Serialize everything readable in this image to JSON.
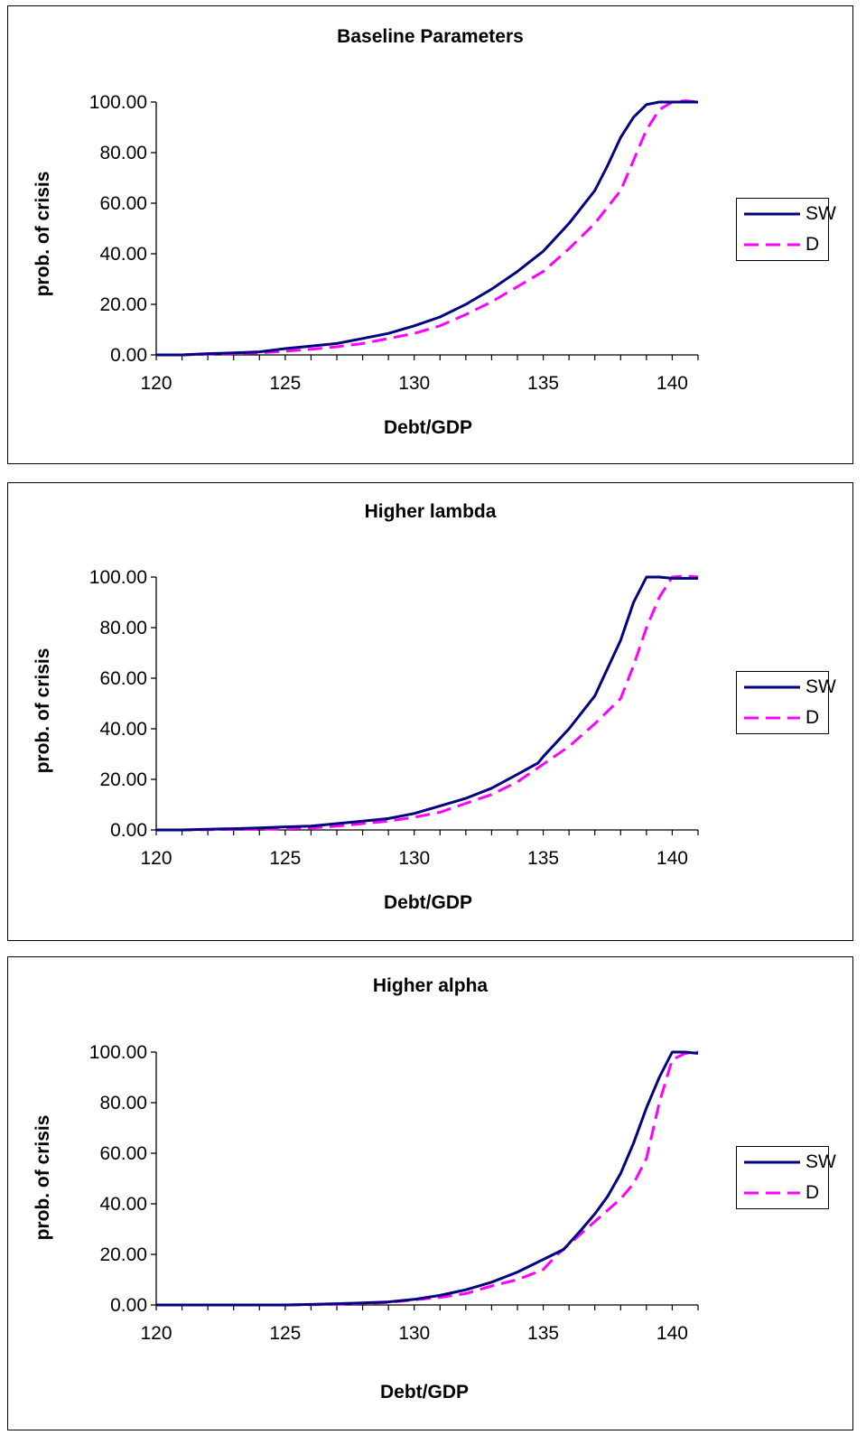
{
  "chart_data": [
    {
      "type": "line",
      "title": "Baseline Parameters",
      "xlabel": "Debt/GDP",
      "ylabel": "prob. of crisis",
      "xlim": [
        120,
        141
      ],
      "ylim": [
        0,
        100
      ],
      "xticks": [
        120,
        125,
        130,
        135,
        140
      ],
      "xtick_labels": [
        "120",
        "125",
        "130",
        "135",
        "140"
      ],
      "yticks": [
        0,
        20,
        40,
        60,
        80,
        100
      ],
      "ytick_labels": [
        "0.00",
        "20.00",
        "40.00",
        "60.00",
        "80.00",
        "100.00"
      ],
      "legend_position": "right",
      "series": [
        {
          "name": "SW",
          "color": "#000080",
          "dash": "solid",
          "x": [
            120,
            121,
            122,
            123,
            124,
            125,
            126,
            127,
            128,
            129,
            130,
            131,
            132,
            133,
            134,
            135,
            136,
            137,
            137.5,
            138,
            138.5,
            139,
            139.5,
            140,
            141
          ],
          "y": [
            0,
            0,
            0.5,
            0.8,
            1.2,
            2.5,
            3.5,
            4.5,
            6.5,
            8.5,
            11.5,
            15,
            20,
            26,
            33,
            41,
            52,
            65,
            75,
            86,
            94,
            99,
            100,
            100,
            100
          ]
        },
        {
          "name": "D",
          "color": "#ff00ff",
          "dash": "dashed",
          "x": [
            120,
            121,
            122,
            123,
            124,
            125,
            126,
            127,
            128,
            129,
            130,
            131,
            132,
            133,
            134,
            135,
            136,
            137,
            138,
            138.5,
            139,
            139.5,
            140,
            140.5,
            141
          ],
          "y": [
            0,
            0,
            0.3,
            0.5,
            0.8,
            1.5,
            2.2,
            3.2,
            4.5,
            6.5,
            8.5,
            11.5,
            16,
            21,
            27,
            33,
            42,
            52,
            65,
            77,
            89,
            97,
            100,
            100.5,
            100
          ]
        }
      ]
    },
    {
      "type": "line",
      "title": "Higher lambda",
      "xlabel": "Debt/GDP",
      "ylabel": "prob. of crisis",
      "xlim": [
        120,
        141
      ],
      "ylim": [
        0,
        100
      ],
      "xticks": [
        120,
        125,
        130,
        135,
        140
      ],
      "xtick_labels": [
        "120",
        "125",
        "130",
        "135",
        "140"
      ],
      "yticks": [
        0,
        20,
        40,
        60,
        80,
        100
      ],
      "ytick_labels": [
        "0.00",
        "20.00",
        "40.00",
        "60.00",
        "80.00",
        "100.00"
      ],
      "legend_position": "right",
      "series": [
        {
          "name": "SW",
          "color": "#000080",
          "dash": "solid",
          "x": [
            120,
            121,
            122,
            123,
            124,
            125,
            126,
            127,
            128,
            129,
            130,
            131,
            132,
            133,
            134,
            134.8,
            135,
            136,
            137,
            137.5,
            138,
            138.5,
            139,
            139.5,
            140,
            141
          ],
          "y": [
            0,
            0,
            0.3,
            0.5,
            0.8,
            1.2,
            1.5,
            2.5,
            3.5,
            4.5,
            6.5,
            9.5,
            12.5,
            16.5,
            22,
            26.5,
            29,
            40,
            53,
            64,
            75,
            90,
            100,
            100,
            99.5,
            99.5
          ]
        },
        {
          "name": "D",
          "color": "#ff00ff",
          "dash": "dashed",
          "x": [
            120,
            121,
            122,
            123,
            124,
            125,
            126,
            127,
            128,
            129,
            130,
            131,
            132,
            133,
            134,
            135,
            136,
            137,
            138,
            138.5,
            139,
            139.5,
            140,
            140.5,
            141
          ],
          "y": [
            0,
            0,
            0.1,
            0.2,
            0.3,
            0.5,
            0.8,
            1.5,
            2.5,
            3.5,
            5,
            7,
            10.5,
            14,
            19,
            26,
            33,
            42,
            52,
            65,
            80,
            92,
            100,
            100.5,
            100
          ]
        }
      ]
    },
    {
      "type": "line",
      "title": "Higher alpha",
      "xlabel": "Debt/GDP",
      "ylabel": "prob. of crisis",
      "xlim": [
        120,
        141
      ],
      "ylim": [
        0,
        100
      ],
      "xticks": [
        120,
        125,
        130,
        135,
        140
      ],
      "xtick_labels": [
        "120",
        "125",
        "130",
        "135",
        "140"
      ],
      "yticks": [
        0,
        20,
        40,
        60,
        80,
        100
      ],
      "ytick_labels": [
        "0.00",
        "20.00",
        "40.00",
        "60.00",
        "80.00",
        "100.00"
      ],
      "legend_position": "right",
      "series": [
        {
          "name": "SW",
          "color": "#000080",
          "dash": "solid",
          "x": [
            120,
            121,
            122,
            123,
            124,
            125,
            126,
            127,
            128,
            129,
            130,
            131,
            132,
            133,
            134,
            135,
            135.8,
            136.5,
            137,
            137.5,
            138,
            138.5,
            139,
            139.5,
            140,
            140.5,
            141
          ],
          "y": [
            0,
            0,
            0,
            0,
            0,
            0,
            0.2,
            0.5,
            0.8,
            1.2,
            2.2,
            3.8,
            6,
            9,
            13,
            18,
            22,
            30,
            36,
            43,
            52,
            64,
            78,
            90,
            100,
            100,
            99.5
          ]
        },
        {
          "name": "D",
          "color": "#ff00ff",
          "dash": "dashed",
          "x": [
            120,
            121,
            122,
            123,
            124,
            125,
            126,
            127,
            128,
            129,
            130,
            131,
            132,
            133,
            134,
            135,
            135.5,
            136,
            137,
            138,
            138.5,
            139,
            139.5,
            140,
            140.5,
            141
          ],
          "y": [
            0,
            0,
            0,
            0,
            0,
            0,
            0.1,
            0.3,
            0.6,
            1,
            2,
            3,
            4.5,
            7.5,
            10,
            14,
            19.5,
            24,
            33,
            42,
            48,
            58,
            80,
            97,
            99.5,
            100
          ]
        }
      ]
    }
  ]
}
